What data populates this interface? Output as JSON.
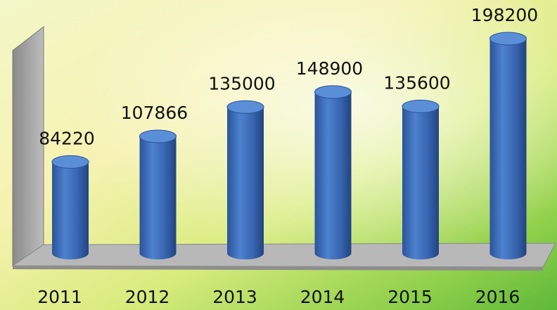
{
  "chart_data": {
    "type": "bar",
    "categories": [
      "2011",
      "2012",
      "2013",
      "2014",
      "2015",
      "2016"
    ],
    "values": [
      84220,
      107866,
      135000,
      148900,
      135600,
      198200
    ],
    "color": "#3b6cb7"
  }
}
